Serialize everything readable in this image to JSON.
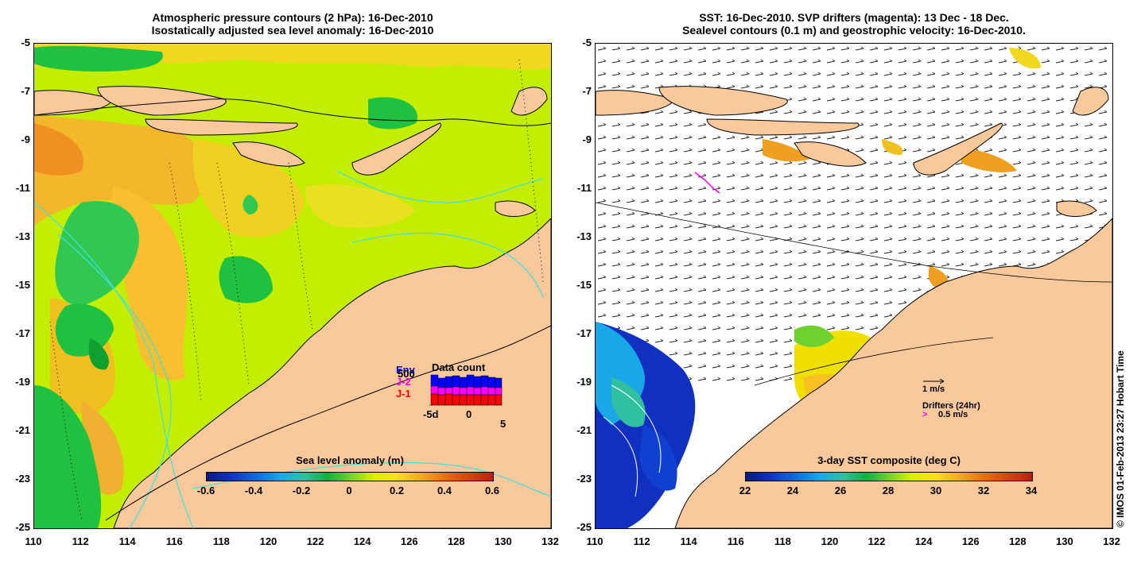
{
  "left_map": {
    "title_line1": "Atmospheric pressure contours (2 hPa): 16-Dec-2010",
    "title_line2": "Isostatically adjusted sea level anomaly: 16-Dec-2010",
    "colorbar_title": "Sea level anomaly (m)",
    "colorbar_ticks": [
      "-0.6",
      "-0.4",
      "-0.2",
      "0",
      "0.2",
      "0.4",
      "0.6"
    ],
    "colorbar_range": [
      -0.6,
      0.6
    ],
    "data_count": {
      "title": "Data count",
      "series": [
        {
          "name": "Env",
          "color": "#0000ff"
        },
        {
          "name": "J-2",
          "color": "#ff00ff"
        },
        {
          "name": "J-1",
          "color": "#ff0000"
        }
      ],
      "max_label": "500",
      "x_ticks": [
        "-5d",
        "0",
        "5"
      ]
    }
  },
  "right_map": {
    "title_line1": "SST: 16-Dec-2010. SVP drifters (magenta): 13 Dec - 18 Dec.",
    "title_line2": "Sealevel contours (0.1 m) and geostrophic velocity: 16-Dec-2010.",
    "colorbar_title": "3-day SST composite (deg C)",
    "colorbar_ticks": [
      "22",
      "24",
      "26",
      "28",
      "30",
      "32",
      "34"
    ],
    "colorbar_range": [
      22,
      34
    ],
    "velocity_legend": "1 m/s",
    "drifter_legend_title": "Drifters (24hr)",
    "drifter_legend_value": "0.5 m/s"
  },
  "axes": {
    "lat_ticks": [
      "-5",
      "-7",
      "-9",
      "-11",
      "-13",
      "-15",
      "-17",
      "-19",
      "-21",
      "-23",
      "-25"
    ],
    "lon_ticks": [
      "110",
      "112",
      "114",
      "116",
      "118",
      "120",
      "122",
      "124",
      "126",
      "128",
      "130",
      "132"
    ],
    "lat_range": [
      -25,
      -5
    ],
    "lon_range": [
      110,
      132
    ]
  },
  "credit": "© IMOS 01-Feb-2013 23:27 Hobart Time",
  "colors": {
    "land": "#f9c99c",
    "sea_base": "#c8f000",
    "warm": "#f8b020",
    "green": "#20c040",
    "contour": "#40e0e0",
    "drifter": "#ff00ff"
  }
}
